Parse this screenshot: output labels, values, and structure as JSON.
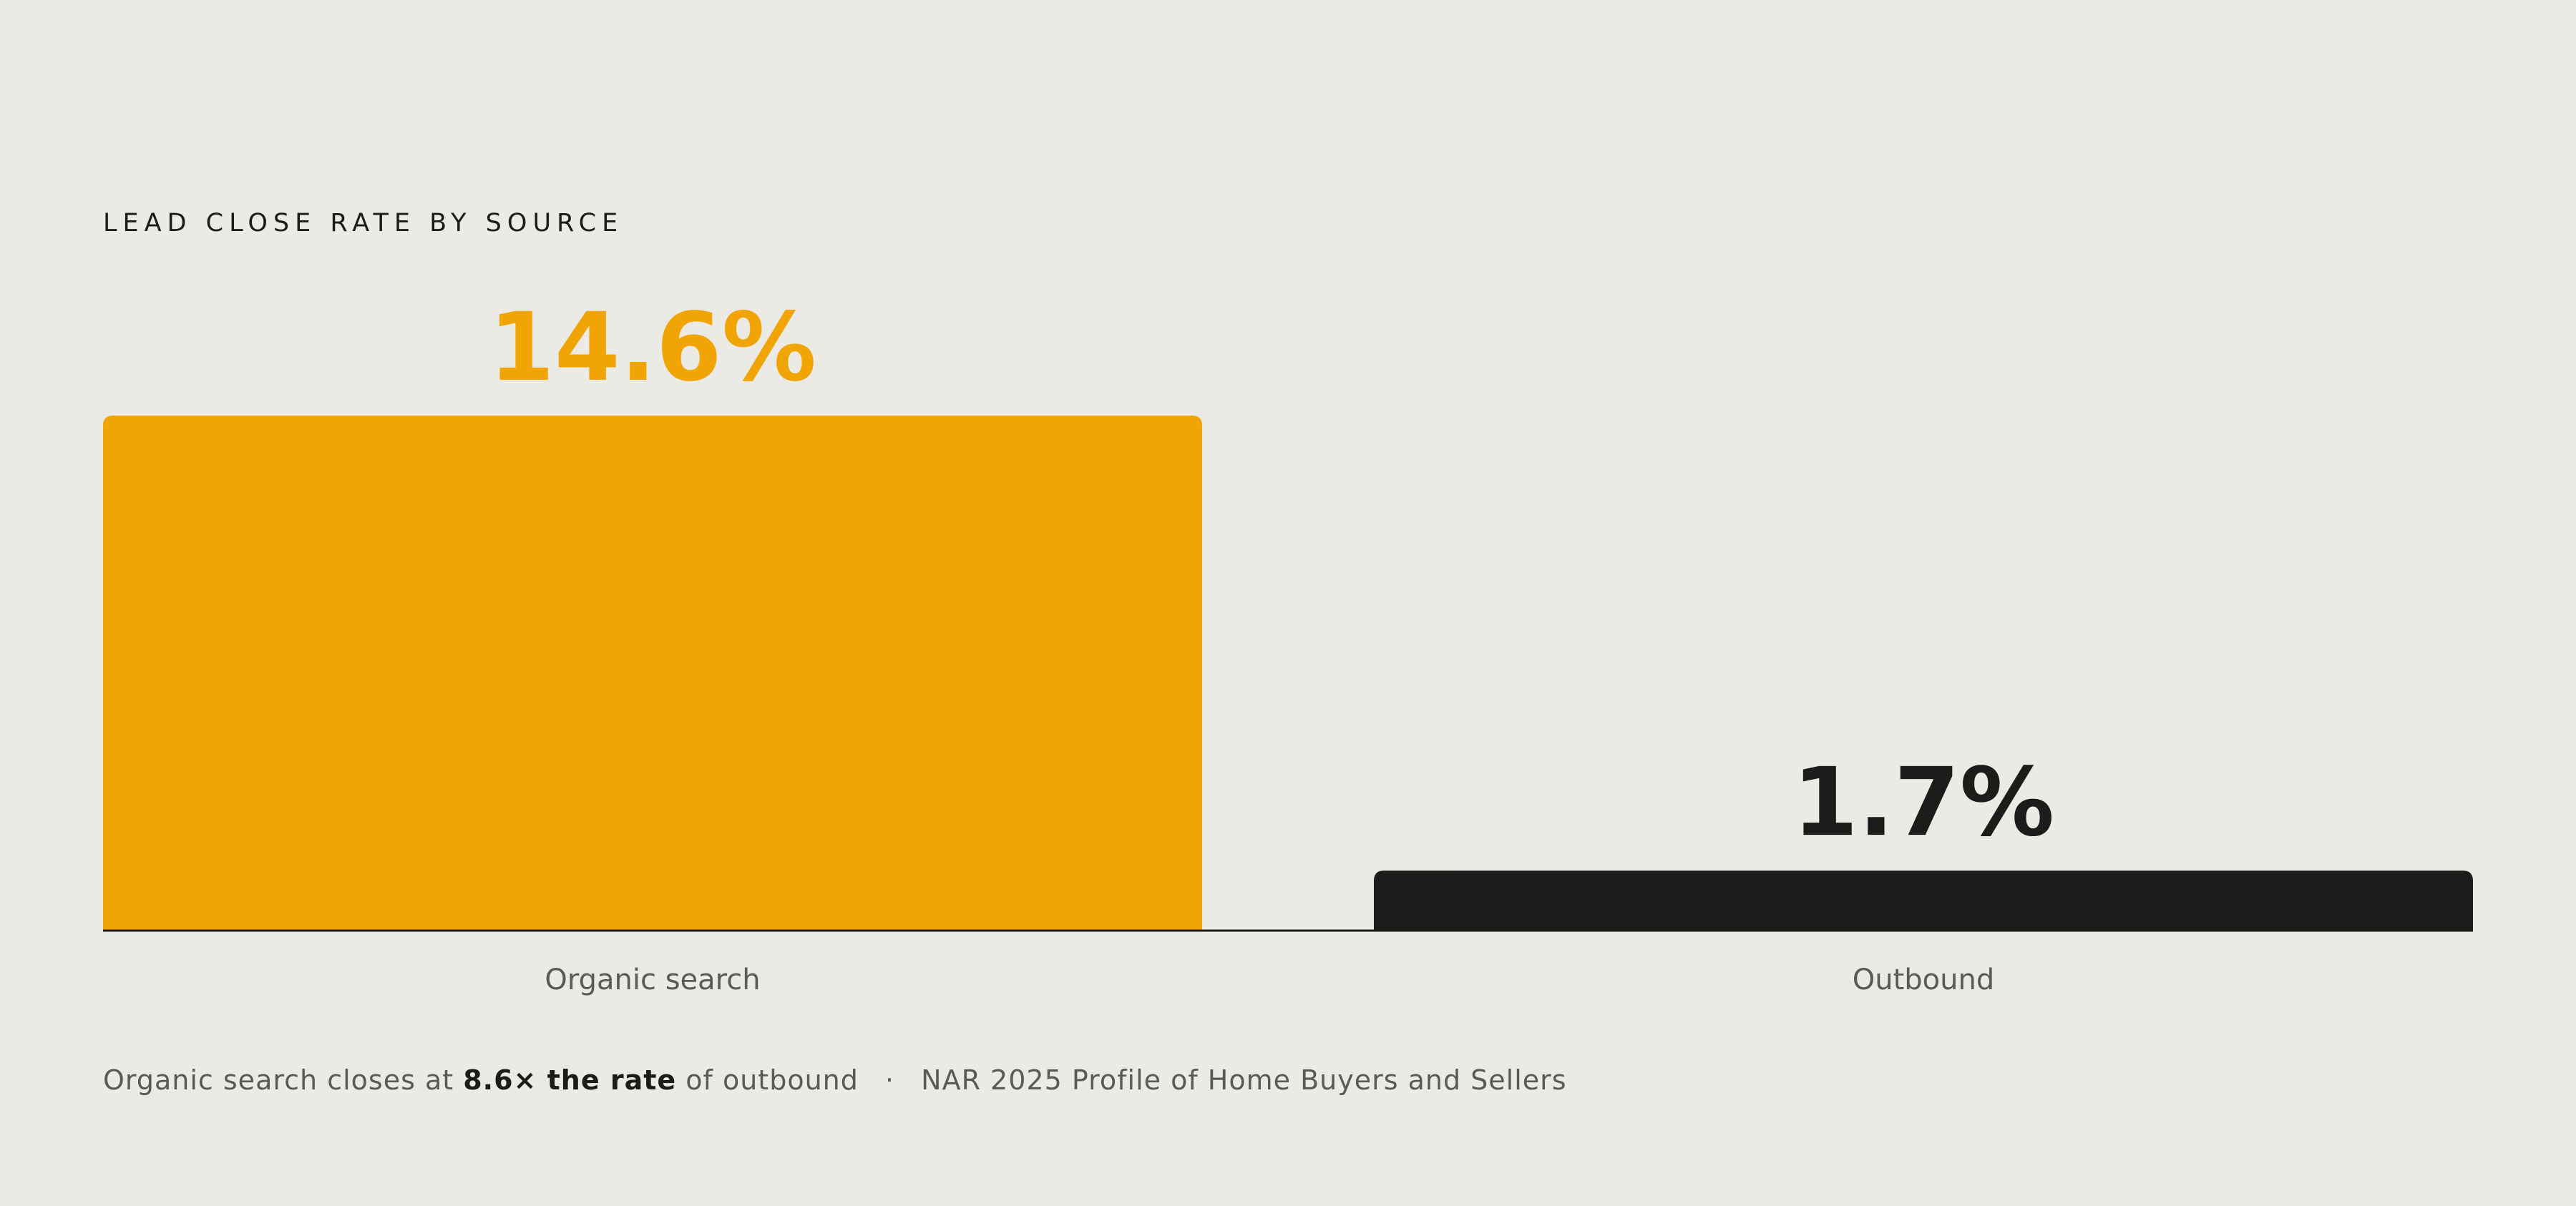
{
  "chart_data": {
    "type": "bar",
    "title": "LEAD CLOSE RATE BY SOURCE",
    "categories": [
      "Organic search",
      "Outbound"
    ],
    "values": [
      14.6,
      1.7
    ],
    "value_labels": [
      "14.6%",
      "1.7%"
    ],
    "unit": "%",
    "colors": [
      "#f0a504",
      "#1c1c1a"
    ],
    "label_colors": [
      "#f0a504",
      "#1c1c1a"
    ],
    "ylim": [
      0,
      14.6
    ],
    "grid": false,
    "legend": "none"
  },
  "caption": {
    "lead": "Organic search closes at",
    "emphasis": "8.6× the rate",
    "tail": "of outbound",
    "separator": "·",
    "source": "NAR 2025 Profile of Home Buyers and Sellers"
  }
}
